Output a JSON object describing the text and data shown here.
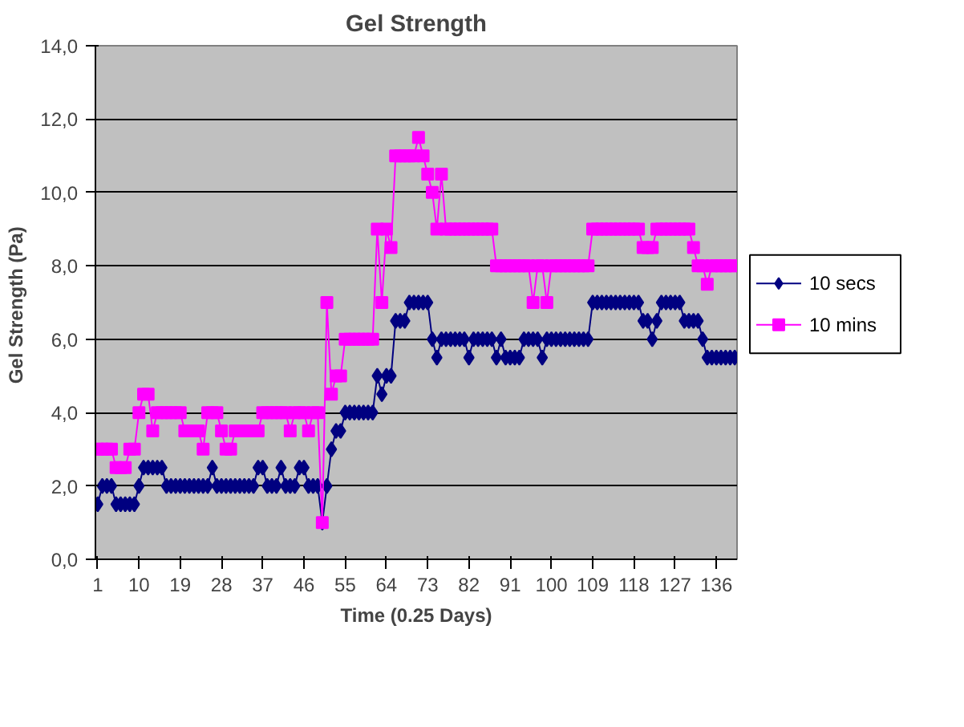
{
  "chart_data": {
    "type": "line",
    "title": "Gel Strength",
    "xlabel": "Time (0.25 Days)",
    "ylabel": "Gel Strength  (Pa)",
    "x": [
      1,
      2,
      3,
      4,
      5,
      6,
      7,
      8,
      9,
      10,
      11,
      12,
      13,
      14,
      15,
      16,
      17,
      18,
      19,
      20,
      21,
      22,
      23,
      24,
      25,
      26,
      27,
      28,
      29,
      30,
      31,
      32,
      33,
      34,
      35,
      36,
      37,
      38,
      39,
      40,
      41,
      42,
      43,
      44,
      45,
      46,
      47,
      48,
      49,
      50,
      51,
      52,
      53,
      54,
      55,
      56,
      57,
      58,
      59,
      60,
      61,
      62,
      63,
      64,
      65,
      66,
      67,
      68,
      69,
      70,
      71,
      72,
      73,
      74,
      75,
      76,
      77,
      78,
      79,
      80,
      81,
      82,
      83,
      84,
      85,
      86,
      87,
      88,
      89,
      90,
      91,
      92,
      93,
      94,
      95,
      96,
      97,
      98,
      99,
      100,
      101,
      102,
      103,
      104,
      105,
      106,
      107,
      108,
      109,
      110,
      111,
      112,
      113,
      114,
      115,
      116,
      117,
      118,
      119,
      120,
      121,
      122,
      123,
      124,
      125,
      126,
      127,
      128,
      129,
      130,
      131,
      132,
      133,
      134,
      135,
      136,
      137,
      138,
      139,
      140
    ],
    "xlim": [
      0.5,
      140.5
    ],
    "xticks": [
      1,
      10,
      19,
      28,
      37,
      46,
      55,
      64,
      73,
      82,
      91,
      100,
      109,
      118,
      127,
      136
    ],
    "ylim": [
      0,
      14
    ],
    "yticks": [
      {
        "value": 0,
        "label": "0,0"
      },
      {
        "value": 2,
        "label": "2,0"
      },
      {
        "value": 4,
        "label": "4,0"
      },
      {
        "value": 6,
        "label": "6,0"
      },
      {
        "value": 8,
        "label": "8,0"
      },
      {
        "value": 10,
        "label": "10,0"
      },
      {
        "value": 12,
        "label": "12,0"
      },
      {
        "value": 14,
        "label": "14,0"
      }
    ],
    "grid": "y",
    "legend": "right",
    "line_style": "solid",
    "series": [
      {
        "name": "10 secs",
        "color": "#000080",
        "marker": "diamond",
        "values": [
          1.5,
          2,
          2,
          2,
          1.5,
          1.5,
          1.5,
          1.5,
          1.5,
          2,
          2.5,
          2.5,
          2.5,
          2.5,
          2.5,
          2,
          2,
          2,
          2,
          2,
          2,
          2,
          2,
          2,
          2,
          2.5,
          2,
          2,
          2,
          2,
          2,
          2,
          2,
          2,
          2,
          2.5,
          2.5,
          2,
          2,
          2,
          2.5,
          2,
          2,
          2,
          2.5,
          2.5,
          2,
          2,
          2,
          1,
          2,
          3,
          3.5,
          3.5,
          4,
          4,
          4,
          4,
          4,
          4,
          4,
          5,
          4.5,
          5,
          5,
          6.5,
          6.5,
          6.5,
          7,
          7,
          7,
          7,
          7,
          6,
          5.5,
          6,
          6,
          6,
          6,
          6,
          6,
          5.5,
          6,
          6,
          6,
          6,
          6,
          5.5,
          6,
          5.5,
          5.5,
          5.5,
          5.5,
          6,
          6,
          6,
          6,
          5.5,
          6,
          6,
          6,
          6,
          6,
          6,
          6,
          6,
          6,
          6,
          7,
          7,
          7,
          7,
          7,
          7,
          7,
          7,
          7,
          7,
          7,
          6.5,
          6.5,
          6,
          6.5,
          7,
          7,
          7,
          7,
          7,
          6.5,
          6.5,
          6.5,
          6.5,
          6,
          5.5,
          5.5,
          5.5,
          5.5,
          5.5,
          5.5,
          5.5
        ]
      },
      {
        "name": "10 mins",
        "color": "#ff00ff",
        "marker": "square",
        "values": [
          3,
          3,
          3,
          3,
          2.5,
          2.5,
          2.5,
          3,
          3,
          4,
          4.5,
          4.5,
          3.5,
          4,
          4,
          4,
          4,
          4,
          4,
          3.5,
          3.5,
          3.5,
          3.5,
          3,
          4,
          4,
          4,
          3.5,
          3,
          3,
          3.5,
          3.5,
          3.5,
          3.5,
          3.5,
          3.5,
          4,
          4,
          4,
          4,
          4,
          4,
          3.5,
          4,
          4,
          4,
          3.5,
          4,
          4,
          1,
          7,
          4.5,
          5,
          5,
          6,
          6,
          6,
          6,
          6,
          6,
          6,
          9,
          7,
          9,
          8.5,
          11,
          11,
          11,
          11,
          11,
          11.5,
          11,
          10.5,
          10,
          9,
          10.5,
          9,
          9,
          9,
          9,
          9,
          9,
          9,
          9,
          9,
          9,
          9,
          8,
          8,
          8,
          8,
          8,
          8,
          8,
          8,
          7,
          8,
          8,
          7,
          8,
          8,
          8,
          8,
          8,
          8,
          8,
          8,
          8,
          9,
          9,
          9,
          9,
          9,
          9,
          9,
          9,
          9,
          9,
          9,
          8.5,
          8.5,
          8.5,
          9,
          9,
          9,
          9,
          9,
          9,
          9,
          9,
          8.5,
          8,
          8,
          7.5,
          8,
          8,
          8,
          8,
          8,
          8
        ]
      }
    ]
  }
}
